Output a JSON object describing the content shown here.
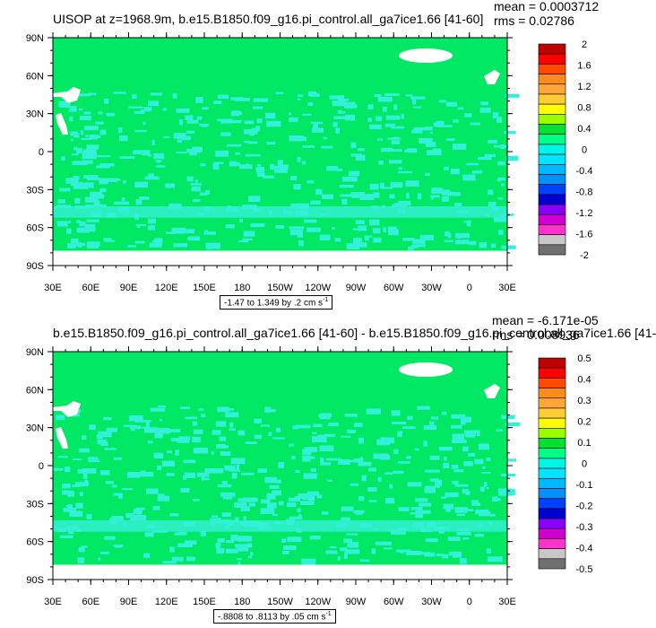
{
  "panels": [
    {
      "title": "UISOP at z=1968.9m, b.e15.B1850.f09_g16.pi_control.all_ga7ice1.66 [41-60]",
      "mean": "mean = 0.0003712",
      "rms": "rms = 0.02786",
      "range_text": "-1.47 to 1.349 by .2 cm s",
      "range_unit_exp": "-1",
      "colorbar": {
        "labels": [
          "2",
          "1.6",
          "1.2",
          "0.8",
          "0.4",
          "0",
          "-0.4",
          "-0.8",
          "-1.2",
          "-1.6",
          "-2"
        ],
        "colors": [
          "#c00000",
          "#ff0000",
          "#ff4a00",
          "#ff8c1a",
          "#ffa63a",
          "#ffcc33",
          "#ffff00",
          "#99ff00",
          "#00e030",
          "#00ff88",
          "#00f5e6",
          "#00e5ff",
          "#00b8ff",
          "#0090ff",
          "#0040ff",
          "#0000d0",
          "#8a00ff",
          "#d000d0",
          "#ff33cc",
          "#c8c8c8",
          "#707070"
        ]
      }
    },
    {
      "title": "b.e15.B1850.f09_g16.pi_control.all_ga7ice1.66 [41-60] - b.e15.B1850.f09_g16.pi_control.all_ga7ice1.66 [41-",
      "mean": "mean = -6.171e-05",
      "rms": "rms = 0.008936",
      "range_text": "-.8808 to .8113 by .05 cm s",
      "range_unit_exp": "-1",
      "colorbar": {
        "labels": [
          "0.5",
          "0.4",
          "0.3",
          "0.2",
          "0.1",
          "0",
          "-0.1",
          "-0.2",
          "-0.3",
          "-0.4",
          "-0.5"
        ],
        "colors": [
          "#c00000",
          "#ff0000",
          "#ff4a00",
          "#ff8c1a",
          "#ffa63a",
          "#ffcc33",
          "#ffff00",
          "#99ff00",
          "#00e030",
          "#00ff88",
          "#00f5e6",
          "#00e5ff",
          "#00b8ff",
          "#0090ff",
          "#0040ff",
          "#0000d0",
          "#8a00ff",
          "#d000d0",
          "#ff33cc",
          "#c8c8c8",
          "#707070"
        ]
      }
    }
  ],
  "map": {
    "lat_labels": [
      "90N",
      "60N",
      "30N",
      "0",
      "30S",
      "60S",
      "90S"
    ],
    "lon_labels": [
      "30E",
      "60E",
      "90E",
      "120E",
      "150E",
      "180",
      "150W",
      "120W",
      "90W",
      "60W",
      "30W",
      "0",
      "30E"
    ],
    "background_color": "#00e864",
    "secondary_color": "#33f0d8",
    "land_color": "#ffffff"
  }
}
